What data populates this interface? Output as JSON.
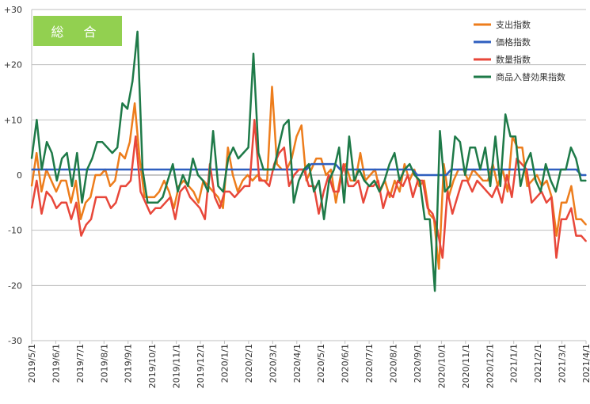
{
  "badge": "総 合",
  "chart_data": {
    "type": "line",
    "title": "",
    "xlabel": "",
    "ylabel": "",
    "ylim": [
      -30,
      30
    ],
    "yticks": [
      -30,
      -20,
      -10,
      0,
      10,
      20,
      30
    ],
    "ytick_labels": [
      "-30",
      "-20",
      "-10",
      "0",
      "+10",
      "+20",
      "+30"
    ],
    "grid": true,
    "legend_position": "top-right",
    "x_tick_labels": [
      "2019/5/1",
      "2019/6/1",
      "2019/7/1",
      "2019/8/1",
      "2019/9/1",
      "2019/10/1",
      "2019/11/1",
      "2019/12/1",
      "2020/1/1",
      "2020/2/1",
      "2020/3/1",
      "2020/4/1",
      "2020/5/1",
      "2020/6/1",
      "2020/7/1",
      "2020/8/1",
      "2020/9/1",
      "2020/10/1",
      "2020/11/1",
      "2020/12/1",
      "2021/1/1",
      "2021/2/1",
      "2021/3/1",
      "2021/4/1"
    ],
    "series": [
      {
        "name": "支出指数",
        "color": "#ed7d1c",
        "values": [
          -2,
          4,
          -3,
          1,
          -1,
          -3,
          -1,
          -1,
          -5,
          -1,
          -8,
          -5,
          -4,
          0,
          0,
          1,
          -2,
          -1,
          4,
          3,
          6,
          13,
          3,
          -4,
          -4,
          -4,
          -3,
          -1,
          -3,
          -6,
          -2,
          -1,
          -2,
          -3,
          -5,
          -1,
          -2,
          -3,
          -4,
          -6,
          5,
          0,
          -3,
          -1,
          0,
          -1,
          0,
          -1,
          -1,
          16,
          2,
          1,
          1,
          3,
          7,
          9,
          -1,
          1,
          3,
          3,
          0,
          1,
          -5,
          0,
          2,
          -1,
          -1,
          4,
          -1,
          0,
          1,
          -3,
          -1,
          -4,
          -1,
          -3,
          2,
          -1,
          1,
          -2,
          -1,
          -7,
          -8,
          -17,
          2,
          -4,
          -1,
          1,
          1,
          -1,
          1,
          0,
          -1,
          -1,
          2,
          -2,
          1,
          -3,
          7,
          5,
          5,
          -2,
          -1,
          0,
          -2,
          -1,
          -4,
          -11,
          -5,
          -5,
          -2,
          -8,
          -8,
          -9
        ]
      },
      {
        "name": "価格指数",
        "color": "#2f5fbf",
        "values": [
          1,
          1,
          1,
          1,
          1,
          1,
          1,
          1,
          1,
          1,
          1,
          1,
          1,
          1,
          1,
          1,
          1,
          1,
          1,
          1,
          1,
          1,
          1,
          1,
          1,
          1,
          1,
          1,
          1,
          1,
          1,
          1,
          1,
          1,
          1,
          1,
          1,
          1,
          1,
          1,
          1,
          1,
          1,
          1,
          1,
          1,
          1,
          1,
          1,
          1,
          1,
          1,
          1,
          1,
          1,
          1,
          1,
          1,
          2,
          2,
          2,
          2,
          2,
          2,
          1,
          1,
          1,
          1,
          1,
          1,
          1,
          1,
          1,
          1,
          1,
          1,
          1,
          1,
          1,
          1,
          0,
          0,
          0,
          0,
          0,
          0,
          0,
          1,
          1,
          1,
          1,
          1,
          1,
          1,
          1,
          1,
          1,
          1,
          1,
          1,
          1,
          1,
          1,
          1,
          1,
          1,
          1,
          1,
          1,
          1,
          1,
          1,
          1,
          1,
          0,
          0
        ]
      },
      {
        "name": "数量指数",
        "color": "#e8473a",
        "values": [
          -6,
          -1,
          -7,
          -3,
          -4,
          -6,
          -5,
          -5,
          -8,
          -5,
          -11,
          -9,
          -8,
          -4,
          -4,
          -4,
          -6,
          -5,
          -2,
          -2,
          -1,
          7,
          -3,
          -5,
          -7,
          -6,
          -6,
          -5,
          -4,
          -8,
          -3,
          -2,
          -4,
          -5,
          -6,
          -8,
          2,
          -4,
          -6,
          -3,
          -3,
          -4,
          -3,
          -2,
          -2,
          10,
          -1,
          -1,
          -2,
          2,
          4,
          5,
          -2,
          0,
          1,
          1,
          -2,
          -2,
          -7,
          -3,
          0,
          -3,
          -3,
          2,
          -2,
          -2,
          -1,
          -5,
          -2,
          -2,
          -1,
          -6,
          -3,
          -4,
          -1,
          -2,
          0,
          -4,
          -1,
          -1,
          -6,
          -7,
          -10,
          -15,
          -3,
          -7,
          -4,
          -1,
          -1,
          -3,
          -1,
          -2,
          -3,
          -4,
          -2,
          -5,
          0,
          -4,
          3,
          2,
          1,
          -5,
          -4,
          -3,
          -5,
          -4,
          -15,
          -8,
          -8,
          -6,
          -11,
          -11,
          -12
        ]
      },
      {
        "name": "商品入替効果指数",
        "color": "#1e7a48",
        "values": [
          3,
          10,
          1,
          6,
          4,
          -1,
          3,
          4,
          -2,
          4,
          -5,
          1,
          3,
          6,
          6,
          5,
          4,
          5,
          13,
          12,
          17,
          26,
          1,
          -5,
          -5,
          -5,
          -4,
          -1,
          2,
          -3,
          0,
          -2,
          3,
          0,
          -1,
          -3,
          8,
          -2,
          -3,
          3,
          5,
          3,
          4,
          5,
          22,
          4,
          1,
          1,
          1,
          5,
          9,
          10,
          -5,
          -1,
          1,
          2,
          -3,
          -1,
          -8,
          -1,
          1,
          5,
          -5,
          7,
          -1,
          1,
          -1,
          -2,
          -1,
          -3,
          -1,
          2,
          4,
          -1,
          1,
          2,
          0,
          -1,
          -8,
          -8,
          -21,
          8,
          -3,
          -2,
          7,
          6,
          0,
          5,
          5,
          1,
          5,
          -2,
          7,
          -2,
          11,
          7,
          7,
          -2,
          2,
          4,
          -1,
          -3,
          2,
          -1,
          -3,
          1,
          1,
          5,
          3,
          -1,
          -1
        ]
      }
    ]
  }
}
